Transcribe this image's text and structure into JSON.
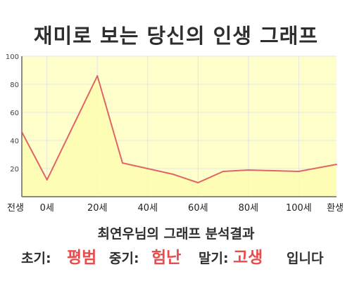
{
  "header": {
    "title": "재미로 보는 당신의 인생 그래프"
  },
  "chart_data": {
    "type": "area",
    "x_categories": [
      "전생",
      "0세",
      "20세",
      "40세",
      "60세",
      "80세",
      "100세",
      "환생"
    ],
    "x_values": [
      -10,
      0,
      20,
      40,
      60,
      80,
      100,
      115
    ],
    "points": [
      {
        "x": -10,
        "y": 46
      },
      {
        "x": 0,
        "y": 12
      },
      {
        "x": 20,
        "y": 86
      },
      {
        "x": 30,
        "y": 24
      },
      {
        "x": 40,
        "y": 20
      },
      {
        "x": 50,
        "y": 16
      },
      {
        "x": 60,
        "y": 10
      },
      {
        "x": 70,
        "y": 18
      },
      {
        "x": 80,
        "y": 19
      },
      {
        "x": 90,
        "y": 18.5
      },
      {
        "x": 100,
        "y": 18
      },
      {
        "x": 115,
        "y": 23
      }
    ],
    "xlim": [
      -10,
      115
    ],
    "ylim": [
      0,
      100
    ],
    "y_ticks": [
      20,
      40,
      60,
      80,
      100
    ],
    "grid": true,
    "colors": {
      "line": "#e06666",
      "fill": "#ffffcc",
      "grid": "#e4e4e4",
      "axis": "#666666"
    }
  },
  "result": {
    "subtitle": "최연우님의 그래프 분석결과",
    "early_label": "초기:",
    "early_value": "평범",
    "middle_label": "중기:",
    "middle_value": "험난",
    "late_label": "말기:",
    "late_value": "고생",
    "ending": "입니다",
    "highlight_color": "#e84d4d"
  }
}
